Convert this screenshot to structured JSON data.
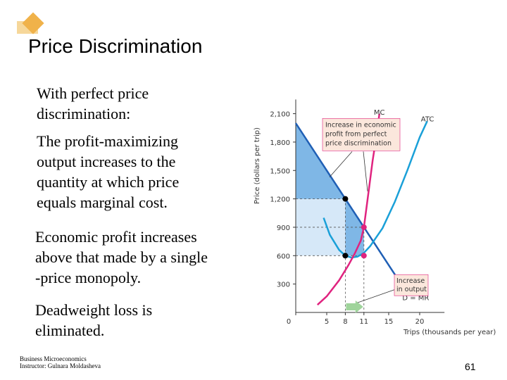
{
  "slide": {
    "title": "Price Discrimination",
    "paragraphs": [
      "With perfect price\ndiscrimination:",
      "The profit-maximizing\noutput increases to the\nquantity at which price\nequals marginal cost.",
      "Economic profit increases\nabove that made by a single\n-price monopoly.",
      "Deadweight loss is\neliminated."
    ],
    "footer": "Business Microeconomics\nInstructor: Gulnara Moldasheva",
    "page_number": "61"
  },
  "chart_data": {
    "type": "line",
    "xlabel": "Trips (thousands per year)",
    "ylabel": "Price (dollars per trip)",
    "xlim": [
      0,
      24
    ],
    "ylim": [
      0,
      2250
    ],
    "x_ticks": [
      "0",
      "5",
      "8",
      "11",
      "15",
      "20"
    ],
    "x_tick_values": [
      0,
      5,
      8,
      11,
      15,
      20
    ],
    "y_ticks": [
      "300",
      "600",
      "900",
      "1,200",
      "1,500",
      "1,800",
      "2,100"
    ],
    "y_tick_values": [
      300,
      600,
      900,
      1200,
      1500,
      1800,
      2100
    ],
    "highlighted_ticks": {
      "x": [
        "11"
      ],
      "y": [
        "900",
        "600"
      ]
    },
    "series": [
      {
        "name": "D = MR",
        "points": [
          [
            0,
            2000
          ],
          [
            8,
            1200
          ],
          [
            11,
            900
          ],
          [
            18,
            200
          ]
        ]
      },
      {
        "name": "MC",
        "points": [
          [
            3.5,
            80
          ],
          [
            5,
            170
          ],
          [
            7,
            340
          ],
          [
            8.5,
            500
          ],
          [
            9.5,
            620
          ],
          [
            10.5,
            760
          ],
          [
            11,
            900
          ],
          [
            11.6,
            1200
          ],
          [
            12.4,
            1600
          ],
          [
            13.1,
            1900
          ],
          [
            13.5,
            2100
          ]
        ]
      },
      {
        "name": "ATC",
        "points": [
          [
            4.5,
            1000
          ],
          [
            5.5,
            820
          ],
          [
            7,
            660
          ],
          [
            8,
            600
          ],
          [
            9,
            580
          ],
          [
            10,
            590
          ],
          [
            11,
            630
          ],
          [
            12,
            700
          ],
          [
            14,
            890
          ],
          [
            16,
            1170
          ],
          [
            18,
            1500
          ],
          [
            20,
            1850
          ],
          [
            21.2,
            2020
          ]
        ]
      }
    ],
    "points": [
      {
        "x": 8,
        "y": 1200,
        "color": "#000000"
      },
      {
        "x": 8,
        "y": 600,
        "color": "#000000"
      },
      {
        "x": 11,
        "y": 900,
        "color": "#e0237f"
      },
      {
        "x": 11,
        "y": 600,
        "color": "#e0237f"
      }
    ],
    "annotations": [
      {
        "text": "Increase in economic\nprofit from perfect\nprice discrimination"
      },
      {
        "text": "Increase\nin output"
      }
    ],
    "output_increase": {
      "from": 8,
      "to": 11
    },
    "colors": {
      "demand": "#1f5fb5",
      "mc": "#e0237f",
      "atc": "#1aa0d8",
      "profit_fill_dark": "#7fb7e6",
      "profit_fill_light": "#d6e8f8",
      "arrow": "#9fd49b",
      "annot_box": "#fbe7dc",
      "highlight_tick": "#d2422c"
    }
  }
}
